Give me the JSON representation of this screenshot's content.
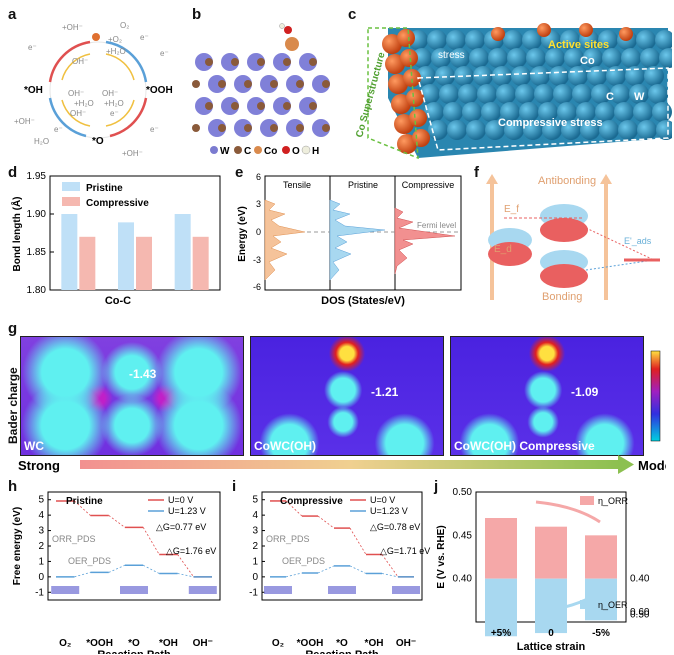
{
  "panels": {
    "a": "a",
    "b": "b",
    "c": "c",
    "d": "d",
    "e": "e",
    "f": "f",
    "g": "g",
    "h": "h",
    "i": "i",
    "j": "j"
  },
  "panel_a": {
    "species": [
      "*OH",
      "*OOH",
      "*O"
    ],
    "labels_top": [
      "+OH⁻",
      "e⁻",
      "O₂",
      "+O₂",
      "+H₂O",
      "e⁻",
      "e⁻",
      "OH⁻"
    ],
    "labels_mid": [
      "+H₂O",
      "OH⁻",
      "OH⁻",
      "+H₂O",
      "OH⁻",
      "e⁻"
    ],
    "labels_bottom": [
      "+OH⁻",
      "H₂O",
      "e⁻",
      "+OH⁻",
      "e⁻"
    ]
  },
  "panel_b": {
    "legend": [
      "W",
      "C",
      "Co",
      "O",
      "H"
    ],
    "colors": [
      "#7b7bd0",
      "#8a5a3a",
      "#d98a4c",
      "#d02020",
      "#e8d5d5"
    ]
  },
  "panel_c": {
    "active_sites": "Active sites",
    "co": "Co",
    "stress": "stress",
    "compressive_stress": "Compressive stress",
    "superstructure": "Co Superstructure",
    "c": "C",
    "w": "W"
  },
  "panel_d": {
    "chart_data": {
      "type": "bar",
      "categories": [
        "Co-C",
        "Co-C",
        "Co-C"
      ],
      "xlabel": "Co-C",
      "ylabel": "Bond length (Å)",
      "ylim": [
        1.8,
        1.95
      ],
      "yticks": [
        "1.80",
        "1.85",
        "1.90",
        "1.95"
      ],
      "series": [
        {
          "name": "Pristine",
          "values": [
            1.9,
            1.889,
            1.9
          ],
          "color": "#bfe0f7"
        },
        {
          "name": "Compressive",
          "values": [
            1.87,
            1.87,
            1.87
          ],
          "color": "#f5b8b0"
        }
      ]
    }
  },
  "panel_e": {
    "chart_data": {
      "type": "area",
      "xlabel": "DOS (States/eV)",
      "ylabel": "Energy (eV)",
      "ylim": [
        -6,
        6
      ],
      "yticks": [
        "6",
        "3",
        "0",
        "-3",
        "-6"
      ],
      "columns": [
        "Tensile",
        "Pristine",
        "Compressive"
      ],
      "fermi_label": "Fermi level"
    }
  },
  "panel_f": {
    "ed": "E_d",
    "ef": "E_f",
    "ead": "E'_ads",
    "antibonding": "Antibonding",
    "bonding": "Bonding"
  },
  "panel_g": {
    "ylabel": "Bader charge",
    "maps": [
      {
        "name": "WC",
        "value": "-1.43"
      },
      {
        "name": "CoWC(OH)",
        "value": "-1.21"
      },
      {
        "name": "CoWC(OH) Compressive",
        "value": "-1.09"
      }
    ],
    "strong": "Strong",
    "moderate": "Moderate"
  },
  "panel_h": {
    "chart_data": {
      "type": "line",
      "title": "Pristine",
      "xlabel": "Reaction Path",
      "ylabel": "Free energy (eV)",
      "categories": [
        "O₂",
        "*OOH",
        "*O",
        "*OH",
        "OH⁻"
      ],
      "ylim": [
        -1.5,
        5.5
      ],
      "yticks": [
        "5",
        "4",
        "3",
        "2",
        "1",
        "0",
        "-1"
      ],
      "series": [
        {
          "name": "U=0 V",
          "values": [
            4.92,
            3.98,
            3.21,
            1.45,
            0
          ],
          "color": "#e05050"
        },
        {
          "name": "U=1.23 V",
          "values": [
            0,
            0.29,
            0.75,
            0.22,
            0
          ],
          "color": "#5aa0d8"
        }
      ],
      "annotations": [
        "△G=0.77 eV",
        "△G=1.76 eV",
        "ORR_PDS",
        "OER_PDS"
      ]
    }
  },
  "panel_i": {
    "chart_data": {
      "type": "line",
      "title": "Compressive",
      "xlabel": "Reaction Path",
      "ylabel": "Free energy (eV)",
      "categories": [
        "O₂",
        "*OOH",
        "*O",
        "*OH",
        "OH⁻"
      ],
      "ylim": [
        -1.5,
        5.5
      ],
      "yticks": [
        "5",
        "4",
        "3",
        "2",
        "1",
        "0",
        "-1"
      ],
      "series": [
        {
          "name": "U=0 V",
          "values": [
            4.92,
            3.94,
            3.16,
            1.45,
            0
          ],
          "color": "#e05050"
        },
        {
          "name": "U=1.23 V",
          "values": [
            0,
            0.25,
            0.71,
            0.22,
            0
          ],
          "color": "#5aa0d8"
        }
      ],
      "annotations": [
        "△G=0.78 eV",
        "△G=1.71 eV",
        "ORR_PDS",
        "OER_PDS"
      ]
    }
  },
  "panel_j": {
    "chart_data": {
      "type": "bar",
      "xlabel": "Lattice strain",
      "ylabel": "E (V vs. RHE)",
      "categories": [
        "+5%",
        "0",
        "-5%"
      ],
      "ylim_left": [
        0.35,
        0.5
      ],
      "yticks_left": [
        "0.50",
        "0.45",
        "0.40"
      ],
      "yticks_right": [
        "0.40",
        "0.50",
        "0.60"
      ],
      "series": [
        {
          "name": "η_ORR",
          "values": [
            0.47,
            0.46,
            0.45
          ],
          "color": "#f5a8a8"
        },
        {
          "name": "η_OER",
          "values": [
            0.58,
            0.57,
            0.53
          ],
          "color": "#a8d8f0"
        }
      ]
    }
  }
}
